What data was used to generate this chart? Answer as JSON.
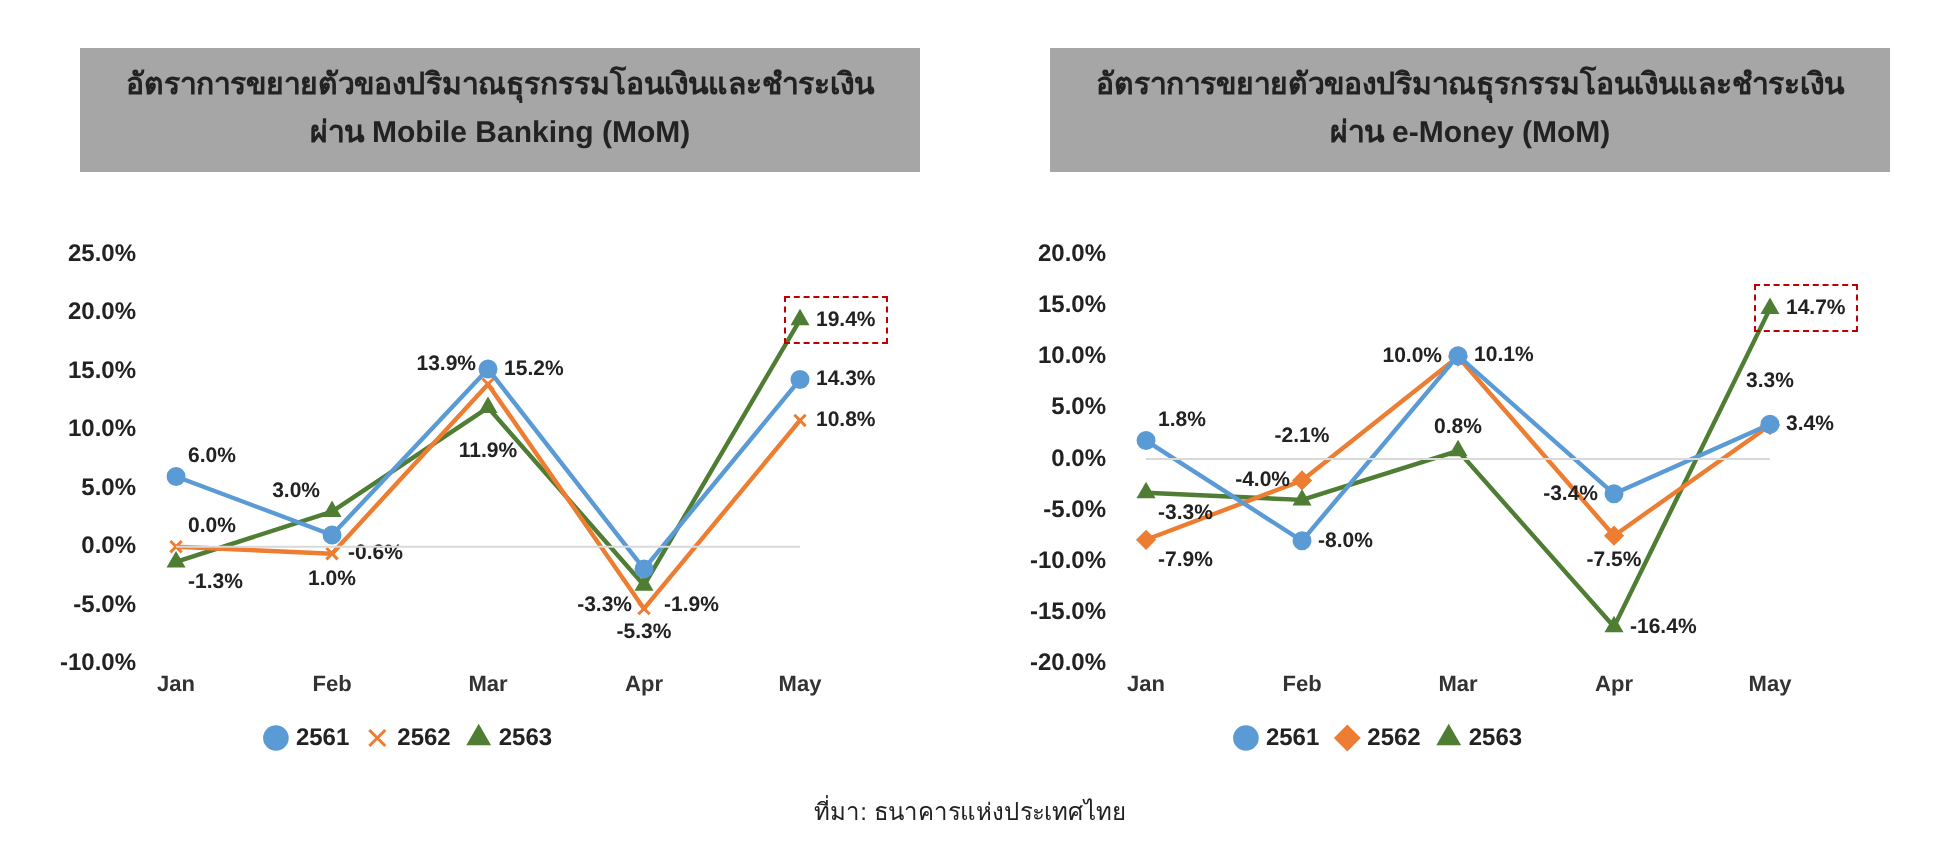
{
  "chart_data": [
    {
      "type": "line",
      "title": "อัตราการขยายตัวของปริมาณธุรกรรมโอนเงินและชำระเงิน\nผ่าน Mobile Banking (MoM)",
      "categories": [
        "Jan",
        "Feb",
        "Mar",
        "Apr",
        "May"
      ],
      "series": [
        {
          "name": "2561",
          "color": "#5b9bd5",
          "marker": "circle",
          "values": [
            6.0,
            1.0,
            15.2,
            -1.9,
            14.3
          ],
          "value_labels": [
            "6.0%",
            "1.0%",
            "15.2%",
            "-1.9%",
            "14.3%"
          ]
        },
        {
          "name": "2562",
          "color": "#ed7d31",
          "marker": "cross",
          "values": [
            0.0,
            -0.6,
            13.9,
            -5.3,
            10.8
          ],
          "value_labels": [
            "0.0%",
            "-0.6%",
            "13.9%",
            "-5.3%",
            "10.8%"
          ]
        },
        {
          "name": "2563",
          "color": "#4e7d33",
          "marker": "triangle",
          "values": [
            -1.3,
            3.0,
            11.9,
            -3.3,
            19.4
          ],
          "value_labels": [
            "-1.3%",
            "3.0%",
            "11.9%",
            "-3.3%",
            "19.4%"
          ]
        }
      ],
      "ylim": [
        -10,
        25
      ],
      "yticks": [
        {
          "value": -10,
          "label": "-10.0%"
        },
        {
          "value": -5,
          "label": "-5.0%"
        },
        {
          "value": 0,
          "label": "0.0%"
        },
        {
          "value": 5,
          "label": "5.0%"
        },
        {
          "value": 10,
          "label": "10.0%"
        },
        {
          "value": 15,
          "label": "15.0%"
        },
        {
          "value": 20,
          "label": "20.0%"
        },
        {
          "value": 25,
          "label": "25.0%"
        }
      ],
      "grid": false,
      "legend": "bottom",
      "ref_lines": [
        {
          "axis": "y",
          "value": 0,
          "color": "#d9d9d9"
        }
      ],
      "annotations": [
        "ที่มา: ธนาคารแห่งประเทศไทย"
      ]
    },
    {
      "type": "line",
      "title": "อัตราการขยายตัวของปริมาณธุรกรรมโอนเงินและชำระเงิน\nผ่าน e-Money (MoM)",
      "categories": [
        "Jan",
        "Feb",
        "Mar",
        "Apr",
        "May"
      ],
      "series": [
        {
          "name": "2561",
          "color": "#5b9bd5",
          "marker": "circle",
          "values": [
            1.8,
            -8.0,
            10.1,
            -3.4,
            3.4
          ],
          "value_labels": [
            "1.8%",
            "-8.0%",
            "10.1%",
            "-3.4%",
            "3.4%"
          ]
        },
        {
          "name": "2562",
          "color": "#ed7d31",
          "marker": "diamond",
          "values": [
            -7.9,
            -2.1,
            10.0,
            -7.5,
            3.3
          ],
          "value_labels": [
            "-7.9%",
            "-2.1%",
            "10.0%",
            "-7.5%",
            "3.3%"
          ]
        },
        {
          "name": "2563",
          "color": "#4e7d33",
          "marker": "triangle",
          "values": [
            -3.3,
            -4.0,
            0.8,
            -16.4,
            14.7
          ],
          "value_labels": [
            "-3.3%",
            "-4.0%",
            "0.8%",
            "-16.4%",
            "14.7%"
          ]
        }
      ],
      "ylim": [
        -20,
        20
      ],
      "yticks": [
        {
          "value": -20,
          "label": "-20.0%"
        },
        {
          "value": -15,
          "label": "-15.0%"
        },
        {
          "value": -10,
          "label": "-10.0%"
        },
        {
          "value": -5,
          "label": "-5.0%"
        },
        {
          "value": 0,
          "label": "0.0%"
        },
        {
          "value": 5,
          "label": "5.0%"
        },
        {
          "value": 10,
          "label": "10.0%"
        },
        {
          "value": 15,
          "label": "15.0%"
        },
        {
          "value": 20,
          "label": "20.0%"
        }
      ],
      "grid": false,
      "legend": "bottom",
      "ref_lines": [
        {
          "axis": "y",
          "value": 0,
          "color": "#d9d9d9"
        }
      ]
    }
  ]
}
